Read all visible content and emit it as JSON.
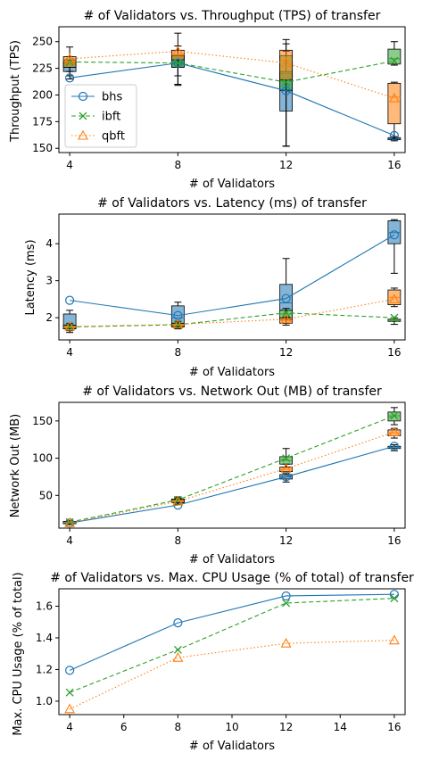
{
  "colors": {
    "bhs": "#1f77b4",
    "ibft": "#2ca02c",
    "qbft": "#ff7f0e"
  },
  "legend": {
    "entries": [
      {
        "key": "bhs",
        "label": "bhs",
        "marker": "circle",
        "dash": "solid"
      },
      {
        "key": "ibft",
        "label": "ibft",
        "marker": "x",
        "dash": "dashed"
      },
      {
        "key": "qbft",
        "label": "qbft",
        "marker": "triangle",
        "dash": "dotted"
      }
    ]
  },
  "chart_data": [
    {
      "type": "line",
      "title": "# of Validators vs. Throughput (TPS) of transfer",
      "xlabel": "# of Validators",
      "ylabel": "Throughput (TPS)",
      "x": [
        4,
        8,
        12,
        16
      ],
      "xticks": [
        "4",
        "8",
        "12",
        "16"
      ],
      "yticks": [
        150,
        175,
        200,
        225,
        250
      ],
      "ylim": [
        146,
        264
      ],
      "legend": "center-left",
      "series": [
        {
          "name": "bhs",
          "values": [
            216,
            230,
            204,
            162
          ]
        },
        {
          "name": "ibft",
          "values": [
            231,
            230,
            212,
            232
          ]
        },
        {
          "name": "qbft",
          "values": [
            234,
            241,
            230,
            197
          ]
        }
      ],
      "boxplots": [
        {
          "series": "bhs",
          "x": 4,
          "q1": 222,
          "median": 226,
          "q3": 231,
          "wlo": 215,
          "whi": 232
        },
        {
          "series": "bhs",
          "x": 8,
          "q1": 226,
          "median": 230,
          "q3": 237,
          "wlo": 218,
          "whi": 246
        },
        {
          "series": "bhs",
          "x": 12,
          "q1": 185,
          "median": 205,
          "q3": 222,
          "wlo": 152,
          "whi": 241
        },
        {
          "series": "bhs",
          "x": 16,
          "q1": 158,
          "median": 159,
          "q3": 160,
          "wlo": 157,
          "whi": 161
        },
        {
          "series": "ibft",
          "x": 4,
          "q1": 226,
          "median": 230,
          "q3": 233,
          "wlo": 222,
          "whi": 236
        },
        {
          "series": "ibft",
          "x": 8,
          "q1": 226,
          "median": 231,
          "q3": 237,
          "wlo": 209,
          "whi": 246
        },
        {
          "series": "ibft",
          "x": 12,
          "q1": 204,
          "median": 220,
          "q3": 237,
          "wlo": 152,
          "whi": 248
        },
        {
          "series": "ibft",
          "x": 16,
          "q1": 229,
          "median": 234,
          "q3": 243,
          "wlo": 228,
          "whi": 250
        },
        {
          "series": "qbft",
          "x": 4,
          "q1": 226,
          "median": 232,
          "q3": 236,
          "wlo": 218,
          "whi": 245
        },
        {
          "series": "qbft",
          "x": 8,
          "q1": 233,
          "median": 238,
          "q3": 242,
          "wlo": 210,
          "whi": 258
        },
        {
          "series": "qbft",
          "x": 12,
          "q1": 214,
          "median": 233,
          "q3": 242,
          "wlo": 152,
          "whi": 252
        },
        {
          "series": "qbft",
          "x": 16,
          "q1": 173,
          "median": 198,
          "q3": 211,
          "wlo": 159,
          "whi": 212
        }
      ]
    },
    {
      "type": "line",
      "title": "# of Validators vs. Latency (ms) of transfer",
      "xlabel": "# of Validators",
      "ylabel": "Latency (ms)",
      "x": [
        4,
        8,
        12,
        16
      ],
      "xticks": [
        "4",
        "8",
        "12",
        "16"
      ],
      "yticks": [
        2,
        3,
        4
      ],
      "ylim": [
        1.4,
        4.8
      ],
      "series": [
        {
          "name": "bhs",
          "values": [
            2.47,
            2.06,
            2.52,
            4.24
          ]
        },
        {
          "name": "ibft",
          "values": [
            1.75,
            1.81,
            2.13,
            2.0
          ]
        },
        {
          "name": "qbft",
          "values": [
            1.76,
            1.82,
            1.96,
            2.5
          ]
        }
      ],
      "boxplots": [
        {
          "series": "bhs",
          "x": 4,
          "q1": 1.7,
          "median": 1.8,
          "q3": 2.1,
          "wlo": 1.6,
          "whi": 2.2
        },
        {
          "series": "bhs",
          "x": 8,
          "q1": 1.78,
          "median": 2.0,
          "q3": 2.32,
          "wlo": 1.7,
          "whi": 2.42
        },
        {
          "series": "bhs",
          "x": 12,
          "q1": 2.2,
          "median": 2.4,
          "q3": 2.9,
          "wlo": 1.85,
          "whi": 3.6
        },
        {
          "series": "bhs",
          "x": 16,
          "q1": 4.0,
          "median": 4.3,
          "q3": 4.62,
          "wlo": 3.2,
          "whi": 4.65
        },
        {
          "series": "ibft",
          "x": 4,
          "q1": 1.7,
          "median": 1.75,
          "q3": 1.8,
          "wlo": 1.65,
          "whi": 1.82
        },
        {
          "series": "ibft",
          "x": 8,
          "q1": 1.76,
          "median": 1.8,
          "q3": 1.85,
          "wlo": 1.72,
          "whi": 1.9
        },
        {
          "series": "ibft",
          "x": 12,
          "q1": 1.95,
          "median": 2.1,
          "q3": 2.2,
          "wlo": 1.85,
          "whi": 2.25
        },
        {
          "series": "ibft",
          "x": 16,
          "q1": 1.9,
          "median": 1.93,
          "q3": 1.96,
          "wlo": 1.82,
          "whi": 2.0
        },
        {
          "series": "qbft",
          "x": 4,
          "q1": 1.7,
          "median": 1.75,
          "q3": 1.8,
          "wlo": 1.65,
          "whi": 1.85
        },
        {
          "series": "qbft",
          "x": 8,
          "q1": 1.75,
          "median": 1.8,
          "q3": 1.85,
          "wlo": 1.7,
          "whi": 1.9
        },
        {
          "series": "qbft",
          "x": 12,
          "q1": 1.85,
          "median": 1.93,
          "q3": 2.0,
          "wlo": 1.8,
          "whi": 2.02
        },
        {
          "series": "qbft",
          "x": 16,
          "q1": 2.35,
          "median": 2.55,
          "q3": 2.75,
          "wlo": 2.3,
          "whi": 2.8
        }
      ]
    },
    {
      "type": "line",
      "title": "# of Validators vs. Network Out (MB) of transfer",
      "xlabel": "# of Validators",
      "ylabel": "Network Out (MB)",
      "x": [
        4,
        8,
        12,
        16
      ],
      "xticks": [
        "4",
        "8",
        "12",
        "16"
      ],
      "yticks": [
        50,
        100,
        150
      ],
      "ylim": [
        6,
        175
      ],
      "series": [
        {
          "name": "bhs",
          "values": [
            13,
            37,
            75,
            116
          ]
        },
        {
          "name": "ibft",
          "values": [
            14,
            44,
            100,
            157
          ]
        },
        {
          "name": "qbft",
          "values": [
            13,
            42,
            86,
            135
          ]
        }
      ],
      "boxplots": [
        {
          "series": "bhs",
          "x": 4,
          "q1": 12,
          "median": 13,
          "q3": 14,
          "wlo": 11,
          "whi": 15
        },
        {
          "series": "bhs",
          "x": 8,
          "q1": 40,
          "median": 42,
          "q3": 44,
          "wlo": 38,
          "whi": 46
        },
        {
          "series": "bhs",
          "x": 12,
          "q1": 72,
          "median": 75,
          "q3": 78,
          "wlo": 68,
          "whi": 80
        },
        {
          "series": "bhs",
          "x": 16,
          "q1": 113,
          "median": 114,
          "q3": 116,
          "wlo": 110,
          "whi": 118
        },
        {
          "series": "ibft",
          "x": 4,
          "q1": 12,
          "median": 14,
          "q3": 15,
          "wlo": 11,
          "whi": 16
        },
        {
          "series": "ibft",
          "x": 8,
          "q1": 40,
          "median": 43,
          "q3": 45,
          "wlo": 38,
          "whi": 48
        },
        {
          "series": "ibft",
          "x": 12,
          "q1": 92,
          "median": 97,
          "q3": 102,
          "wlo": 88,
          "whi": 113
        },
        {
          "series": "ibft",
          "x": 16,
          "q1": 150,
          "median": 157,
          "q3": 162,
          "wlo": 145,
          "whi": 168
        },
        {
          "series": "qbft",
          "x": 4,
          "q1": 12,
          "median": 13,
          "q3": 15,
          "wlo": 11,
          "whi": 16
        },
        {
          "series": "qbft",
          "x": 8,
          "q1": 40,
          "median": 42,
          "q3": 45,
          "wlo": 38,
          "whi": 47
        },
        {
          "series": "qbft",
          "x": 12,
          "q1": 82,
          "median": 85,
          "q3": 88,
          "wlo": 78,
          "whi": 92
        },
        {
          "series": "qbft",
          "x": 16,
          "q1": 130,
          "median": 134,
          "q3": 138,
          "wlo": 127,
          "whi": 140
        }
      ]
    },
    {
      "type": "line",
      "title": "# of Validators vs. Max. CPU Usage (% of total) of transfer",
      "xlabel": "# of Validators",
      "ylabel": "Max. CPU Usage (% of total)",
      "x": [
        4,
        8,
        12,
        16
      ],
      "xticks": [
        "4",
        "6",
        "8",
        "10",
        "12",
        "14",
        "16"
      ],
      "yticks": [
        1.0,
        1.2,
        1.4,
        1.6
      ],
      "ylim": [
        0.915,
        1.71
      ],
      "series": [
        {
          "name": "bhs",
          "values": [
            1.195,
            1.495,
            1.665,
            1.675
          ]
        },
        {
          "name": "ibft",
          "values": [
            1.055,
            1.325,
            1.62,
            1.65
          ]
        },
        {
          "name": "qbft",
          "values": [
            0.95,
            1.275,
            1.365,
            1.385
          ]
        }
      ],
      "boxplots": []
    }
  ]
}
